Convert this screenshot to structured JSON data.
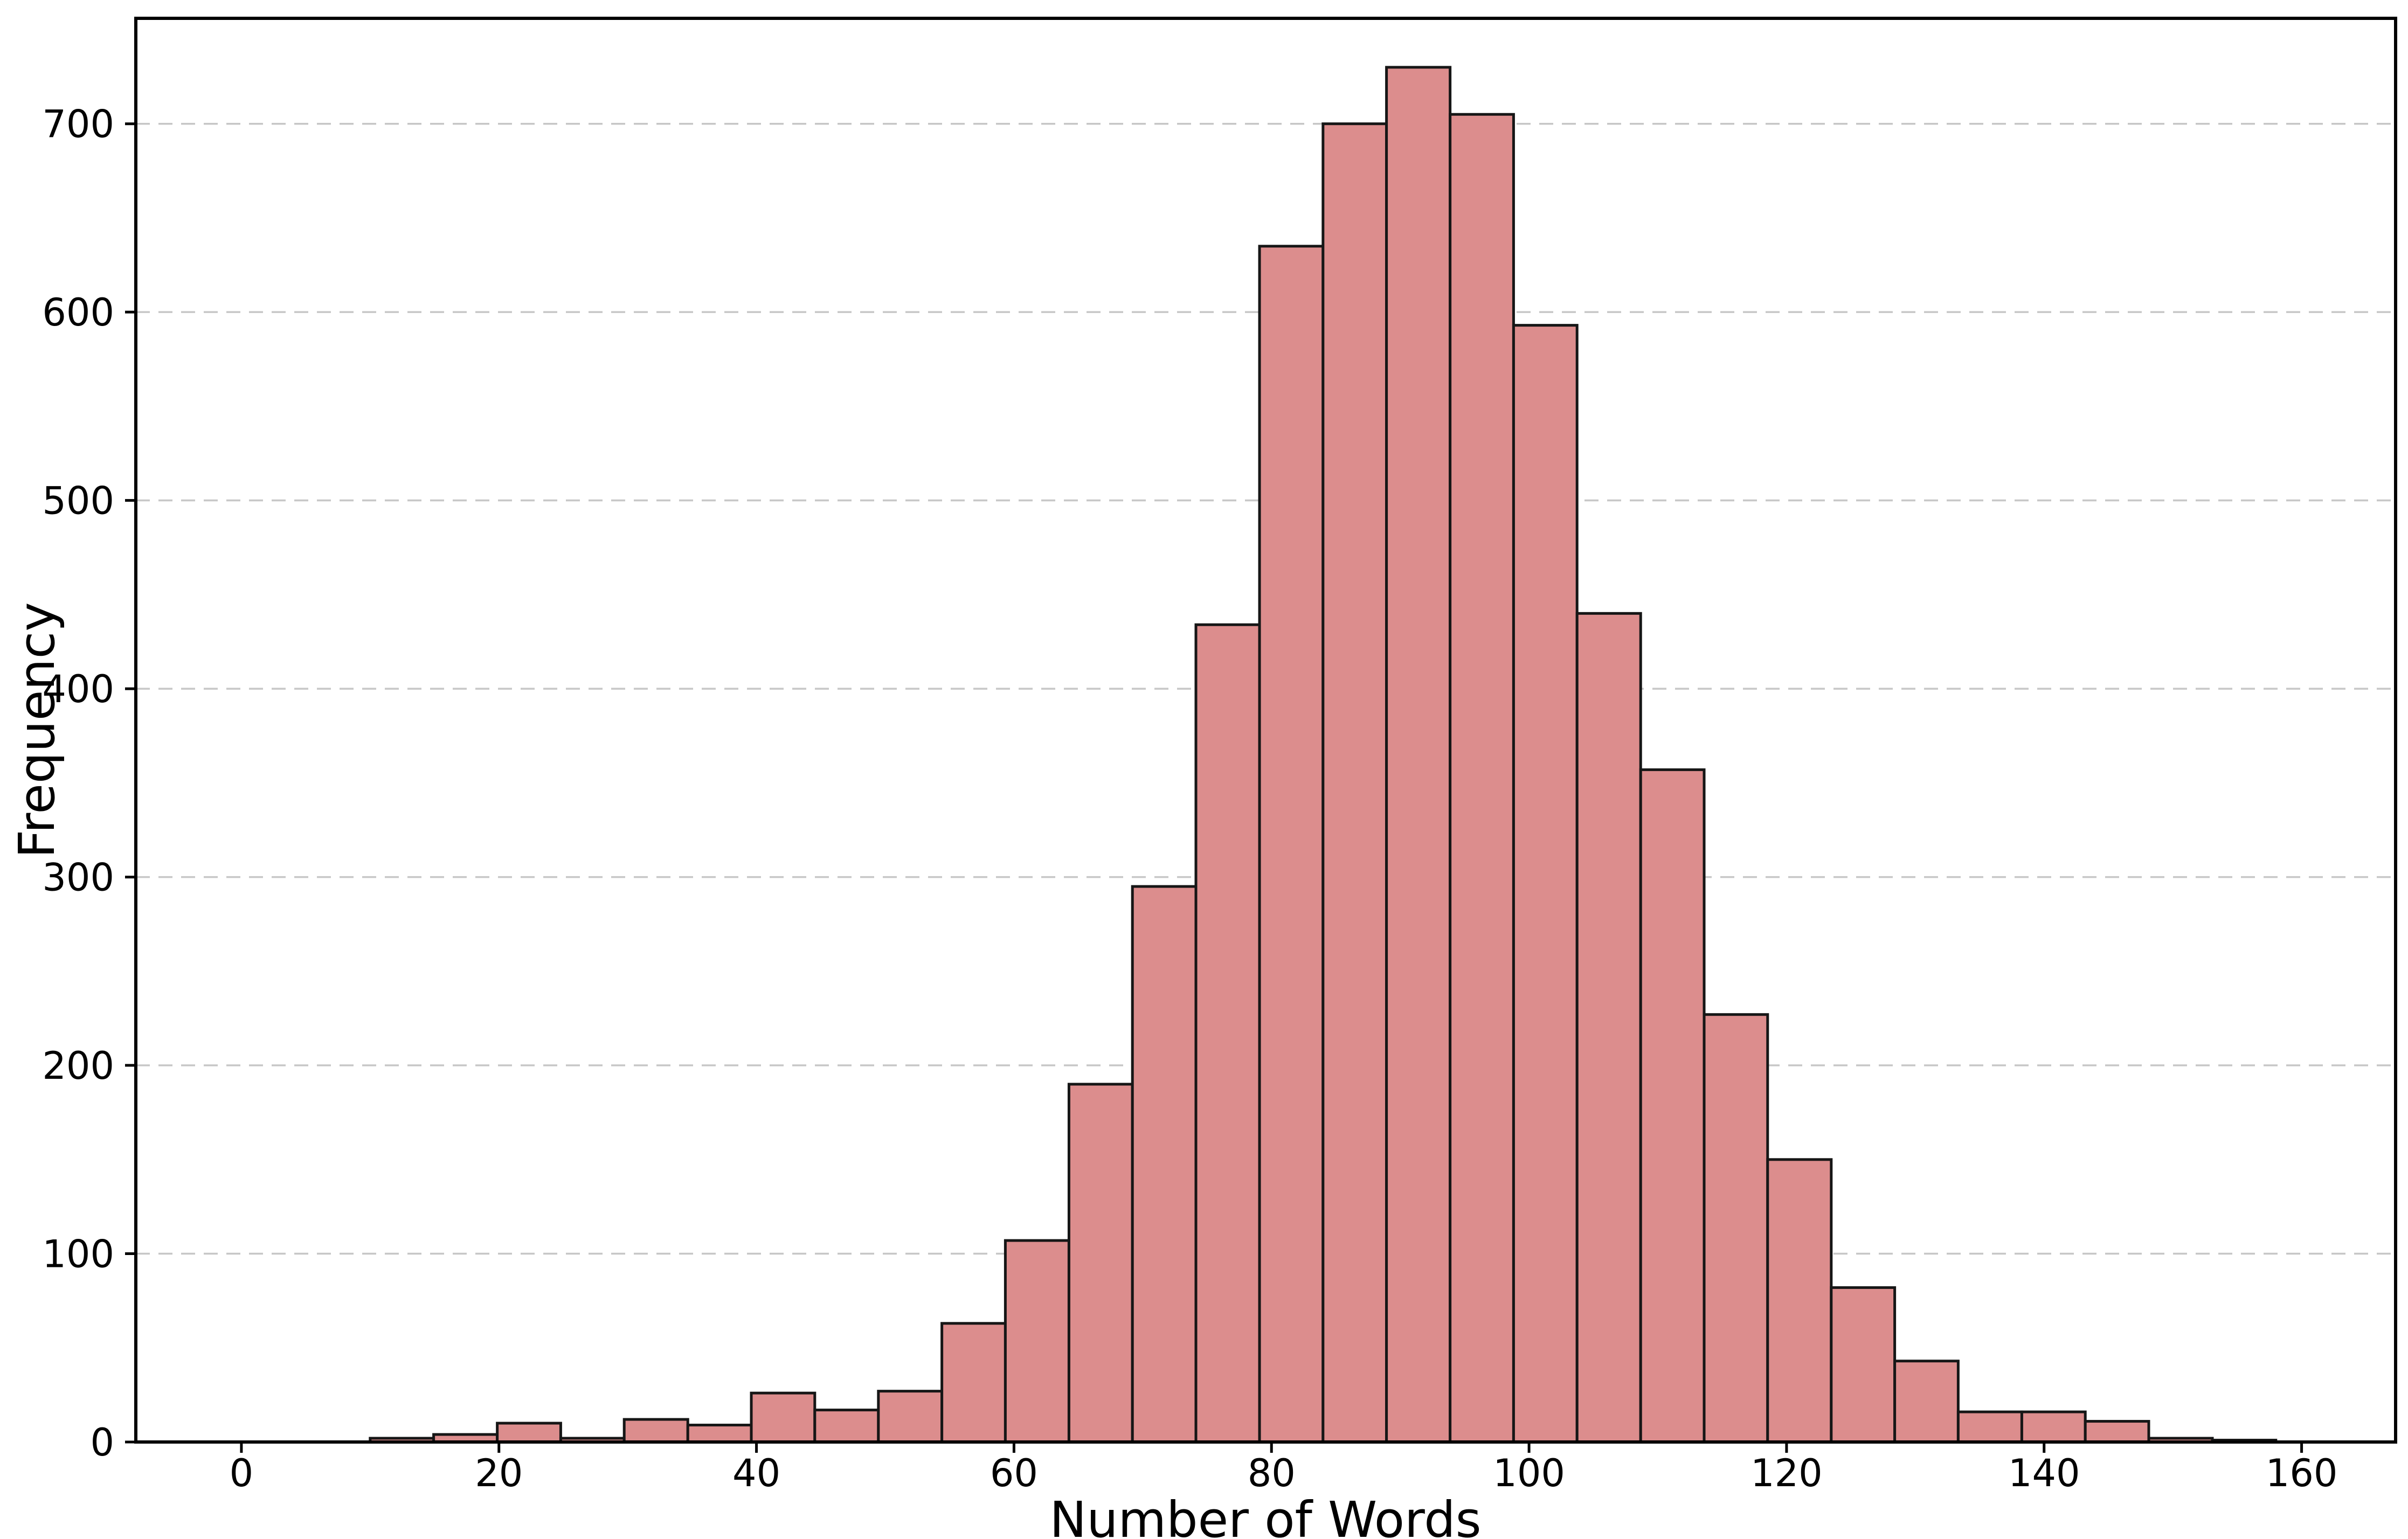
{
  "chart_data": {
    "type": "bar",
    "subtype": "histogram",
    "title": "",
    "xlabel": "Number of Words",
    "ylabel": "Frequency",
    "x_ticks": [
      0,
      20,
      40,
      60,
      80,
      100,
      120,
      140,
      160
    ],
    "y_ticks": [
      0,
      100,
      200,
      300,
      400,
      500,
      600,
      700
    ],
    "xlim": [
      -8.2,
      167.3
    ],
    "ylim": [
      0,
      756
    ],
    "grid": "horizontal-dashed",
    "legend": "none",
    "bin_edges": [
      10,
      14.93,
      19.87,
      24.8,
      29.73,
      34.67,
      39.6,
      44.53,
      49.47,
      54.4,
      59.33,
      64.27,
      69.2,
      74.13,
      79.07,
      84,
      88.93,
      93.87,
      98.8,
      103.73,
      108.67,
      113.6,
      118.53,
      123.47,
      128.4,
      133.33,
      138.27,
      143.2,
      148.13,
      153.07,
      158
    ],
    "values": [
      2,
      4,
      10,
      2,
      12,
      9,
      26,
      17,
      27,
      63,
      107,
      190,
      295,
      434,
      635,
      700,
      730,
      705,
      593,
      440,
      357,
      227,
      150,
      82,
      43,
      16,
      16,
      11,
      2,
      1
    ],
    "colors": {
      "bar_fill": "#DC8D8D",
      "bar_edge": "#161616",
      "grid": "#C7C7C7",
      "axis": "#000000",
      "background": "#FFFFFF",
      "text": "#000000"
    }
  }
}
